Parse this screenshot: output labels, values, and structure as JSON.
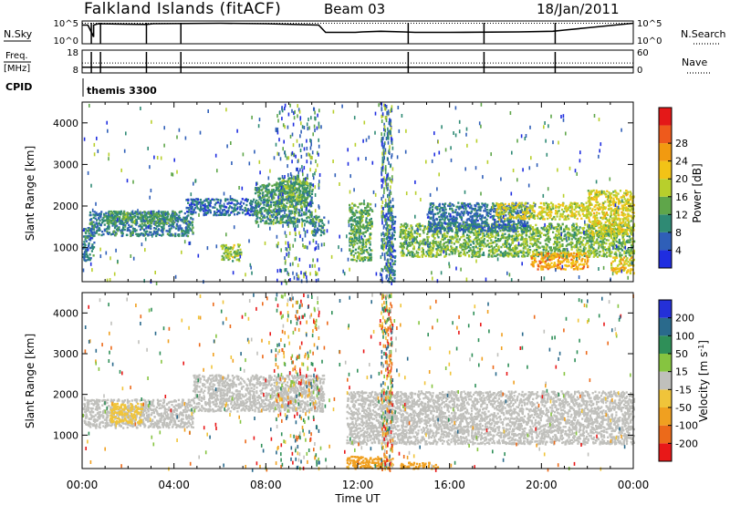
{
  "header": {
    "station": "Falkland Islands (fitACF)",
    "beam": "Beam 03",
    "date": "18/Jan/2011"
  },
  "chart_data": [
    {
      "type": "line",
      "panel": "noise",
      "left_label": "N.Sky",
      "right_label": "N.Search",
      "right_legend_line": "dotted",
      "y_ticks_left": [
        "10^5",
        "10^0"
      ],
      "y_ticks_right": [
        "10^5",
        "10^0"
      ],
      "series": [
        {
          "name": "N.Sky",
          "style": "solid",
          "x": [
            0,
            0.25,
            0.5,
            0.5,
            0.7,
            2.8,
            3.1,
            6.0,
            8.0,
            10.3,
            10.6,
            11.9,
            12.2,
            13.0,
            14.0,
            14.5,
            16.0,
            19.0,
            20.5,
            21.0,
            22.0,
            23.0,
            24.0
          ],
          "y": [
            0.82,
            0.82,
            0.3,
            0.82,
            0.88,
            0.85,
            0.88,
            0.9,
            0.88,
            0.82,
            0.5,
            0.5,
            0.52,
            0.55,
            0.52,
            0.5,
            0.5,
            0.52,
            0.55,
            0.6,
            0.7,
            0.8,
            0.9
          ]
        },
        {
          "name": "N.Search",
          "style": "dotted",
          "x": [
            0,
            24
          ],
          "y": [
            0.9,
            0.9
          ]
        }
      ],
      "scan_markers_hours": [
        0.4,
        0.8,
        2.8,
        4.3,
        14.2,
        17.5,
        20.6
      ]
    },
    {
      "type": "line",
      "panel": "frequency",
      "left_label_top": "Freq.",
      "left_label_bottom": "[MHz]",
      "right_label": "Nave",
      "right_legend_line": "dotted",
      "y_ticks_left": [
        "18",
        "8"
      ],
      "y_ticks_right": [
        "60",
        "0"
      ],
      "series": [
        {
          "name": "Freq.",
          "style": "solid",
          "x": [
            0,
            24
          ],
          "y": [
            10.5,
            10.5
          ]
        },
        {
          "name": "Nave",
          "style": "dotted",
          "x": [
            0,
            24
          ],
          "y": [
            26,
            26
          ]
        }
      ],
      "scan_markers_hours": [
        0.4,
        0.8,
        2.8,
        4.3,
        14.2,
        17.5,
        20.6
      ]
    },
    {
      "type": "table",
      "panel": "cpid",
      "left_label": "CPID",
      "segments": [
        {
          "start_hour": 0,
          "end_hour": 24,
          "label": "themis 3300"
        }
      ]
    },
    {
      "type": "heatmap",
      "panel": "power",
      "ylabel": "Slant Range [km]",
      "ylim": [
        180,
        4500
      ],
      "yticks": [
        1000,
        2000,
        3000,
        4000
      ],
      "xlim": [
        0,
        24
      ],
      "colorbar": {
        "label": "Power [dB]",
        "ticks": [
          4,
          8,
          12,
          16,
          20,
          24,
          28
        ],
        "colors": [
          "#1f2de0",
          "#2f5fb8",
          "#2f8a74",
          "#5fa64a",
          "#b8cf2c",
          "#f2c316",
          "#f29a10",
          "#ee5a1c",
          "#e41818"
        ]
      },
      "regions": [
        {
          "t": [
            0,
            0.5
          ],
          "r": [
            700,
            1500
          ],
          "level": 8
        },
        {
          "t": [
            0.3,
            4.8
          ],
          "r": [
            1300,
            1900
          ],
          "level": 9
        },
        {
          "t": [
            1.0,
            4.0
          ],
          "r": [
            1600,
            1900
          ],
          "level": 12
        },
        {
          "t": [
            4.5,
            7.6
          ],
          "r": [
            1800,
            2200
          ],
          "level": 7
        },
        {
          "t": [
            6.0,
            6.9
          ],
          "r": [
            700,
            1100
          ],
          "level": 16
        },
        {
          "t": [
            7.5,
            10.0
          ],
          "r": [
            1600,
            2600
          ],
          "level": 11
        },
        {
          "t": [
            8.5,
            9.8
          ],
          "r": [
            2000,
            2700
          ],
          "level": 14
        },
        {
          "t": [
            10.0,
            10.5
          ],
          "r": [
            1300,
            1800
          ],
          "level": 10
        },
        {
          "t": [
            11.6,
            12.6
          ],
          "r": [
            700,
            2100
          ],
          "level": 13
        },
        {
          "t": [
            13.2,
            13.6
          ],
          "r": [
            200,
            2100
          ],
          "level": 8
        },
        {
          "t": [
            13.8,
            24.0
          ],
          "r": [
            800,
            1600
          ],
          "level": 15
        },
        {
          "t": [
            15.0,
            19.5
          ],
          "r": [
            1400,
            2100
          ],
          "level": 8
        },
        {
          "t": [
            18.0,
            22.0
          ],
          "r": [
            1700,
            2100
          ],
          "level": 19
        },
        {
          "t": [
            19.5,
            22.0
          ],
          "r": [
            500,
            900
          ],
          "level": 25
        },
        {
          "t": [
            22.0,
            24.0
          ],
          "r": [
            1300,
            2400
          ],
          "level": 20
        },
        {
          "t": [
            23.0,
            24.0
          ],
          "r": [
            400,
            800
          ],
          "level": 22
        }
      ]
    },
    {
      "type": "heatmap",
      "panel": "velocity",
      "ylabel": "Slant Range [km]",
      "ylim": [
        180,
        4500
      ],
      "yticks": [
        1000,
        2000,
        3000,
        4000
      ],
      "xlim": [
        0,
        24
      ],
      "xticks": [
        "00:00",
        "04:00",
        "08:00",
        "12:00",
        "16:00",
        "20:00",
        "00:00"
      ],
      "xlabel": "Time UT",
      "colorbar": {
        "label": "Velocity [m s^-1]",
        "ticks": [
          200,
          100,
          50,
          15,
          -15,
          -50,
          -100,
          -200
        ],
        "colors": [
          "#2430d8",
          "#2a6a8c",
          "#2f8f58",
          "#86c440",
          "#c0c0bc",
          "#f0c43a",
          "#f0a020",
          "#ec6a1a",
          "#e81818"
        ]
      },
      "regions": [
        {
          "t": [
            0.0,
            4.8
          ],
          "r": [
            1200,
            1900
          ],
          "level": -5
        },
        {
          "t": [
            1.2,
            2.6
          ],
          "r": [
            1300,
            1800
          ],
          "level": -40
        },
        {
          "t": [
            4.8,
            10.5
          ],
          "r": [
            1600,
            2500
          ],
          "level": -5
        },
        {
          "t": [
            11.5,
            24.0
          ],
          "r": [
            800,
            2100
          ],
          "level": -5
        },
        {
          "t": [
            11.5,
            13.5
          ],
          "r": [
            200,
            500
          ],
          "level": -60
        },
        {
          "t": [
            13.8,
            15.5
          ],
          "r": [
            200,
            350
          ],
          "level": -60
        }
      ]
    }
  ]
}
